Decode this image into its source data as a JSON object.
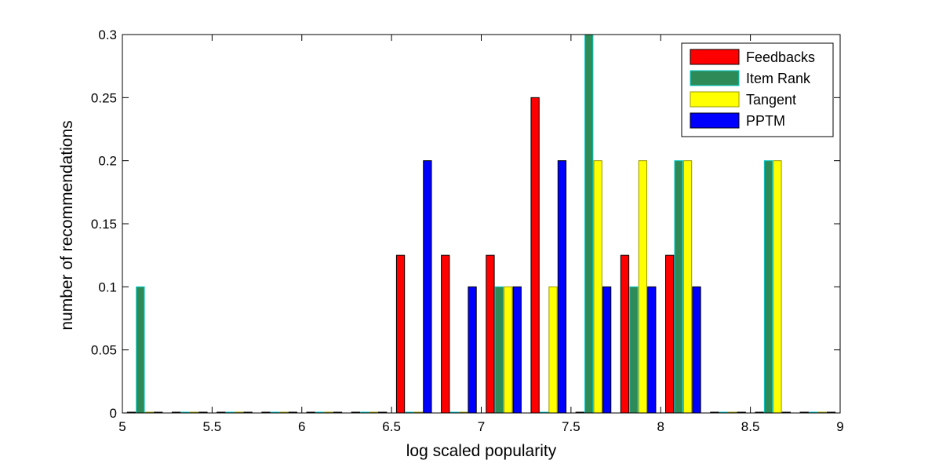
{
  "chart_data": {
    "type": "bar",
    "xlabel": "log scaled popularity",
    "ylabel": "number of recommendations",
    "xlim": [
      5,
      9
    ],
    "ylim": [
      0,
      0.3
    ],
    "xticks": [
      "5",
      "5.5",
      "6",
      "6.5",
      "7",
      "7.5",
      "8",
      "8.5",
      "9"
    ],
    "yticks": [
      "0",
      "0.05",
      "0.1",
      "0.15",
      "0.2",
      "0.25",
      "0.3"
    ],
    "grid": false,
    "legend_position": "top-right",
    "bin_width": 0.25,
    "bins": [
      5.125,
      5.375,
      5.625,
      5.875,
      6.125,
      6.375,
      6.625,
      6.875,
      7.125,
      7.375,
      7.625,
      7.875,
      8.125,
      8.375,
      8.625,
      8.875
    ],
    "series": [
      {
        "name": "Feedbacks",
        "color": "#ff0000",
        "edge": "#000000",
        "values": [
          0,
          0,
          0,
          0,
          0,
          0,
          0.125,
          0.125,
          0.125,
          0.25,
          0,
          0.125,
          0.125,
          0,
          0,
          0
        ]
      },
      {
        "name": "Item Rank",
        "color": "#2e8b57",
        "edge": "#00c8c8",
        "values": [
          0.1,
          0,
          0,
          0,
          0,
          0,
          0,
          0,
          0.1,
          0,
          0.3,
          0.1,
          0.2,
          0,
          0.2,
          0
        ]
      },
      {
        "name": "Tangent",
        "color": "#ffff00",
        "edge": "#999900",
        "values": [
          0,
          0,
          0,
          0,
          0,
          0,
          0,
          0,
          0.1,
          0.1,
          0.2,
          0.2,
          0.2,
          0,
          0.2,
          0
        ]
      },
      {
        "name": "PPTM",
        "color": "#0000ff",
        "edge": "#000000",
        "values": [
          0,
          0,
          0,
          0,
          0,
          0,
          0.2,
          0.1,
          0.1,
          0.2,
          0.1,
          0.1,
          0.1,
          0,
          0,
          0
        ]
      }
    ]
  }
}
